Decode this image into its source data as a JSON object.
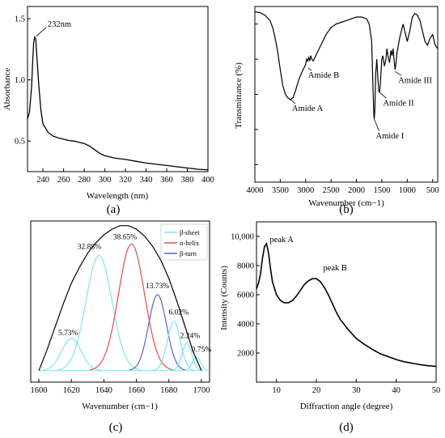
{
  "chart_data": [
    {
      "panel": "(a)",
      "type": "line",
      "xlabel": "Wavelength (nm)",
      "ylabel": "Absorbance",
      "xlim": [
        225,
        400
      ],
      "ylim": [
        0.25,
        1.6
      ],
      "xticks": [
        240,
        260,
        280,
        300,
        320,
        340,
        360,
        380,
        400
      ],
      "yticks": [
        0.5,
        1.0,
        1.5
      ],
      "ytick_labels": [
        "0.5",
        "1.0",
        "1.5"
      ],
      "annotations": [
        {
          "text": "232nm",
          "x": 232,
          "y": 1.35
        }
      ],
      "series": [
        {
          "x": [
            225,
            227,
            229,
            230,
            231,
            232,
            233,
            234,
            236,
            238,
            240,
            245,
            250,
            255,
            260,
            265,
            270,
            275,
            280,
            285,
            290,
            295,
            300,
            310,
            320,
            330,
            340,
            350,
            360,
            370,
            380,
            390,
            400
          ],
          "y": [
            0.68,
            0.74,
            0.95,
            1.15,
            1.3,
            1.35,
            1.33,
            1.2,
            0.95,
            0.75,
            0.64,
            0.57,
            0.54,
            0.525,
            0.515,
            0.505,
            0.5,
            0.49,
            0.48,
            0.46,
            0.43,
            0.4,
            0.38,
            0.36,
            0.35,
            0.335,
            0.32,
            0.31,
            0.3,
            0.29,
            0.28,
            0.27,
            0.265
          ]
        }
      ]
    },
    {
      "panel": "(b)",
      "type": "line",
      "xlabel": "Wavenumber (cm−1)",
      "ylabel": "Transmittance (%)",
      "xlim": [
        4000,
        400
      ],
      "ylim": [
        0,
        100
      ],
      "xticks": [
        4000,
        3500,
        3000,
        2500,
        2000,
        1500,
        1000,
        500
      ],
      "y_tick_marks": [
        10,
        30,
        50,
        70,
        90
      ],
      "annotations": [
        {
          "text": "Amide A",
          "x": 3300,
          "y": 47
        },
        {
          "text": "Amide B",
          "x": 2950,
          "y": 65
        },
        {
          "text": "Amide I",
          "x": 1650,
          "y": 36
        },
        {
          "text": "Amide II",
          "x": 1540,
          "y": 51
        },
        {
          "text": "Amide III",
          "x": 1240,
          "y": 63
        }
      ],
      "series": [
        {
          "x": [
            4000,
            3900,
            3800,
            3700,
            3650,
            3600,
            3550,
            3500,
            3450,
            3400,
            3350,
            3300,
            3250,
            3200,
            3150,
            3100,
            3050,
            3000,
            2980,
            2960,
            2940,
            2920,
            2900,
            2880,
            2850,
            2800,
            2700,
            2600,
            2500,
            2400,
            2300,
            2200,
            2100,
            2000,
            1900,
            1800,
            1750,
            1700,
            1680,
            1660,
            1650,
            1640,
            1620,
            1600,
            1580,
            1560,
            1545,
            1530,
            1500,
            1480,
            1450,
            1420,
            1400,
            1380,
            1350,
            1320,
            1300,
            1280,
            1260,
            1240,
            1220,
            1200,
            1150,
            1100,
            1080,
            1050,
            1030,
            1000,
            950,
            900,
            850,
            800,
            750,
            700,
            650,
            600,
            550,
            500,
            450,
            400
          ],
          "y": [
            97,
            96.5,
            95,
            92,
            88,
            82,
            74,
            64,
            55,
            50,
            48,
            47,
            48,
            52,
            57,
            61,
            64,
            67,
            70,
            69,
            71,
            69,
            72,
            70,
            69,
            72,
            78,
            84,
            88,
            90,
            91,
            92,
            93,
            94,
            94,
            93,
            90,
            80,
            60,
            40,
            36,
            40,
            62,
            70,
            60,
            52,
            51,
            56,
            70,
            72,
            66,
            70,
            76,
            72,
            68,
            75,
            72,
            76,
            70,
            64,
            68,
            74,
            82,
            88,
            90,
            86,
            84,
            80,
            86,
            94,
            96,
            95,
            92,
            86,
            80,
            78,
            82,
            84,
            78,
            76
          ]
        }
      ]
    },
    {
      "panel": "(c)",
      "type": "line",
      "xlabel": "Wavenumber (cm−1)",
      "ylabel": "",
      "xlim": [
        1595,
        1705
      ],
      "ylim": [
        -0.1,
        1.3
      ],
      "xticks": [
        1600,
        1620,
        1640,
        1660,
        1680,
        1700
      ],
      "legend": {
        "position": "top-right",
        "entries": [
          {
            "label": "β-sheet",
            "color": "#7fe6f0"
          },
          {
            "label": "α-helix",
            "color": "#e05050"
          },
          {
            "label": "β-turn",
            "color": "#6060cc"
          }
        ]
      },
      "envelope": {
        "color": "#000000",
        "x": [
          1600,
          1605,
          1610,
          1615,
          1620,
          1625,
          1630,
          1635,
          1640,
          1645,
          1650,
          1655,
          1660,
          1665,
          1670,
          1675,
          1680,
          1685,
          1690,
          1695,
          1700
        ],
        "y": [
          0.0,
          0.18,
          0.38,
          0.58,
          0.76,
          0.9,
          1.02,
          1.11,
          1.18,
          1.23,
          1.26,
          1.26,
          1.23,
          1.17,
          1.08,
          0.96,
          0.8,
          0.6,
          0.38,
          0.16,
          0.0
        ]
      },
      "components": [
        {
          "type": "β-sheet",
          "center": 1620,
          "height": 0.28,
          "width": 6,
          "percent": "5.73%"
        },
        {
          "type": "β-sheet",
          "center": 1637,
          "height": 1.0,
          "width": 8,
          "percent": "32.88%"
        },
        {
          "type": "α-helix",
          "center": 1657,
          "height": 1.1,
          "width": 8,
          "percent": "38.65%"
        },
        {
          "type": "β-turn",
          "center": 1673,
          "height": 0.66,
          "width": 5.5,
          "percent": "13.73%"
        },
        {
          "type": "β-sheet",
          "center": 1683,
          "height": 0.43,
          "width": 4,
          "percent": "6.02%"
        },
        {
          "type": "β-sheet",
          "center": 1691,
          "height": 0.24,
          "width": 3,
          "percent": "2.24%"
        },
        {
          "type": "β-sheet",
          "center": 1697,
          "height": 0.12,
          "width": 2.5,
          "percent": "0.75%"
        }
      ]
    },
    {
      "panel": "(d)",
      "type": "line",
      "xlabel": "Diffraction angle (degree)",
      "ylabel": "Intensity (Counts)",
      "xlim": [
        5,
        50
      ],
      "ylim": [
        0,
        11000
      ],
      "xticks": [
        10,
        20,
        30,
        40,
        50
      ],
      "yticks": [
        2000,
        4000,
        6000,
        8000,
        10000
      ],
      "ytick_labels": [
        "2000",
        "4000",
        "6000",
        "8000",
        "10,000"
      ],
      "annotations": [
        {
          "text": "peak A",
          "x": 7.5,
          "y": 9500
        },
        {
          "text": "peak B",
          "x": 20.5,
          "y": 7100
        }
      ],
      "series": [
        {
          "x": [
            5,
            5.5,
            6,
            6.5,
            7,
            7.5,
            8,
            8.5,
            9,
            10,
            11,
            12,
            13,
            14,
            15,
            16,
            17,
            18,
            19,
            20,
            21,
            22,
            23,
            24,
            25,
            26,
            28,
            30,
            32,
            34,
            36,
            38,
            40,
            42,
            44,
            46,
            48,
            50
          ],
          "y": [
            6400,
            6800,
            7400,
            8500,
            9300,
            9500,
            8900,
            7800,
            6900,
            6000,
            5600,
            5450,
            5450,
            5600,
            5900,
            6300,
            6700,
            6950,
            7100,
            7100,
            6900,
            6500,
            6000,
            5400,
            4800,
            4300,
            3600,
            3000,
            2600,
            2250,
            1950,
            1750,
            1550,
            1400,
            1300,
            1200,
            1130,
            1080
          ]
        }
      ]
    }
  ],
  "panel_labels": [
    "(a)",
    "(b)",
    "(c)",
    "(d)"
  ]
}
